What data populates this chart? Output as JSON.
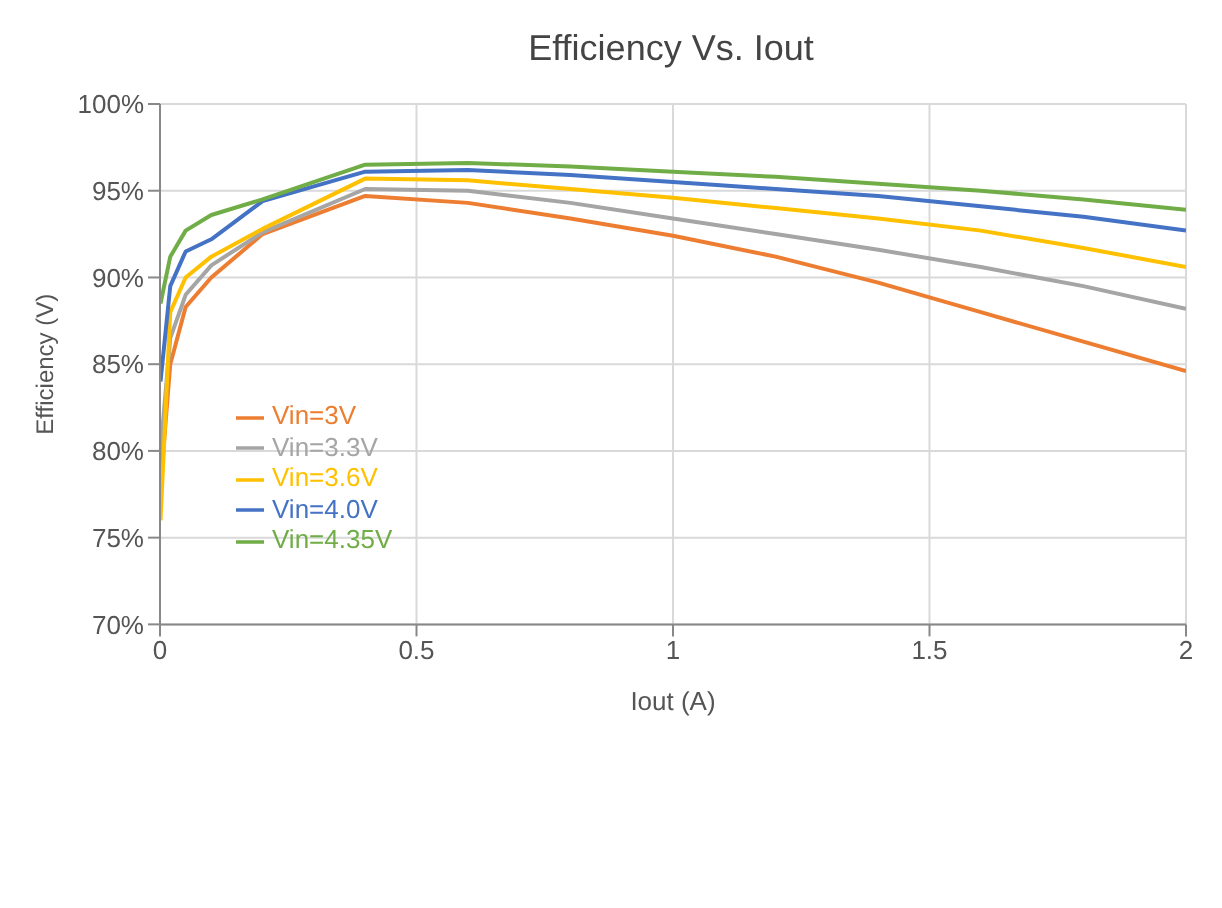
{
  "chart_data": {
    "type": "line",
    "title": "Efficiency Vs. Iout",
    "xlabel": "Iout (A)",
    "ylabel": "Efficiency (V)",
    "x": [
      0.001,
      0.02,
      0.05,
      0.1,
      0.2,
      0.4,
      0.6,
      0.8,
      1.0,
      1.2,
      1.4,
      1.6,
      1.8,
      2.0
    ],
    "series": [
      {
        "name": "Vin=3V",
        "color": "#ed7d31",
        "values": [
          78,
          85,
          88.3,
          90,
          92.5,
          94.7,
          94.3,
          93.4,
          92.4,
          91.2,
          89.7,
          88.0,
          86.3,
          84.6
        ]
      },
      {
        "name": "Vin=3.3V",
        "color": "#a5a5a5",
        "values": [
          80,
          86.5,
          89,
          90.7,
          92.6,
          95.1,
          95.0,
          94.3,
          93.4,
          92.5,
          91.6,
          90.6,
          89.5,
          88.2
        ]
      },
      {
        "name": "Vin=3.6V",
        "color": "#ffc000",
        "values": [
          76,
          88,
          90,
          91.2,
          92.8,
          95.7,
          95.6,
          95.1,
          94.6,
          94.0,
          93.4,
          92.7,
          91.7,
          90.6
        ]
      },
      {
        "name": "Vin=4.0V",
        "color": "#4472c4",
        "values": [
          84,
          89.5,
          91.5,
          92.2,
          94.4,
          96.1,
          96.2,
          95.9,
          95.5,
          95.1,
          94.7,
          94.1,
          93.5,
          92.7
        ]
      },
      {
        "name": "Vin=4.35V",
        "color": "#70ad47",
        "values": [
          88.5,
          91.2,
          92.7,
          93.6,
          94.5,
          96.5,
          96.6,
          96.4,
          96.1,
          95.8,
          95.4,
          95.0,
          94.5,
          93.9
        ]
      }
    ],
    "xlim": [
      0,
      2
    ],
    "xticks": [
      0,
      0.5,
      1,
      1.5,
      2
    ],
    "ylim": [
      70,
      100
    ],
    "yticks": [
      {
        "value": 70,
        "label": "70%"
      },
      {
        "value": 75,
        "label": "75%"
      },
      {
        "value": 80,
        "label": "80%"
      },
      {
        "value": 85,
        "label": "85%"
      },
      {
        "value": 90,
        "label": "90%"
      },
      {
        "value": 95,
        "label": "95%"
      },
      {
        "value": 100,
        "label": "100%"
      }
    ],
    "grid": true,
    "legend": "bottom left",
    "marker": "none",
    "line_style": "solid"
  }
}
